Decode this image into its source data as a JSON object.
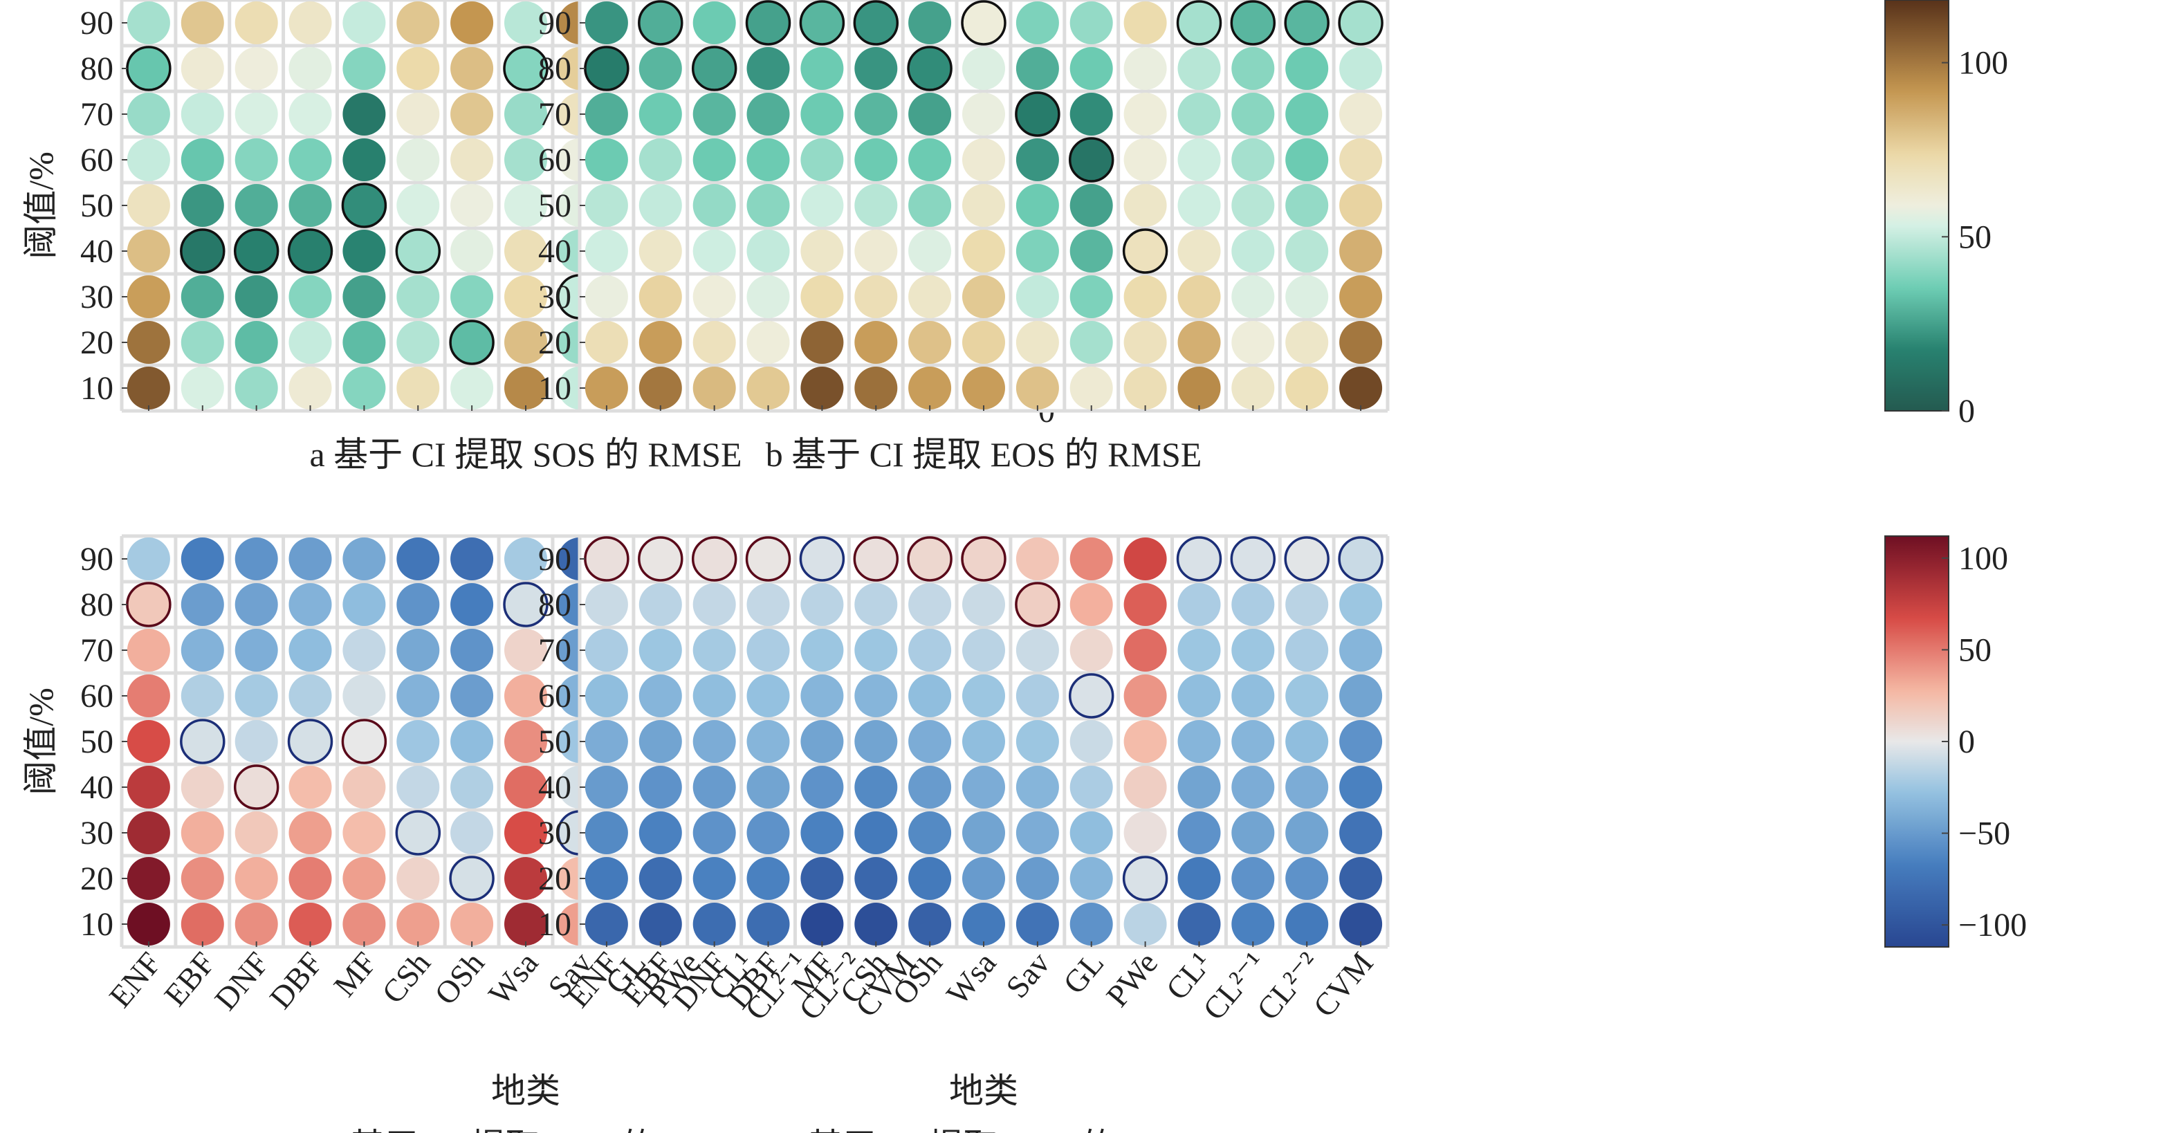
{
  "figure": {
    "ylabel": "阈值/%",
    "xlabel": "地类"
  },
  "chart_data": [
    {
      "type": "heatmap",
      "caption": "a 基于 CI 提取 SOS 的 RMSE",
      "categories": [
        "ENF",
        "EBF",
        "DNF",
        "DBF",
        "MF",
        "CSh",
        "OSh",
        "Wsa",
        "Sav",
        "GL",
        "PWe",
        "CL¹",
        "CL²⁻¹",
        "CL²⁻²",
        "CVM"
      ],
      "thresholds": [
        90,
        80,
        70,
        60,
        50,
        40,
        30,
        20,
        10
      ],
      "ylabel": "阈值/%",
      "xlabel": "",
      "colorbar": {
        "min": 0,
        "max": 105,
        "ticks": [
          0,
          50,
          100
        ],
        "scheme": "brbg"
      },
      "values": [
        [
          40,
          70,
          63,
          58,
          45,
          70,
          82,
          43,
          85,
          82,
          72,
          88,
          40,
          30,
          60
        ],
        [
          30,
          55,
          53,
          50,
          35,
          65,
          72,
          35,
          68,
          57,
          60,
          80,
          35,
          32,
          50
        ],
        [
          38,
          45,
          48,
          48,
          12,
          55,
          70,
          38,
          60,
          52,
          62,
          75,
          42,
          22,
          50
        ],
        [
          45,
          30,
          35,
          33,
          15,
          50,
          58,
          40,
          52,
          30,
          65,
          68,
          40,
          18,
          55
        ],
        [
          60,
          20,
          25,
          26,
          18,
          48,
          52,
          48,
          50,
          20,
          67,
          55,
          40,
          18,
          46
        ],
        [
          72,
          12,
          15,
          15,
          16,
          40,
          50,
          62,
          40,
          18,
          75,
          45,
          48,
          14,
          35
        ],
        [
          80,
          25,
          20,
          35,
          22,
          40,
          35,
          65,
          45,
          25,
          82,
          35,
          55,
          18,
          45
        ],
        [
          90,
          38,
          28,
          45,
          28,
          42,
          28,
          72,
          38,
          35,
          92,
          42,
          60,
          25,
          55
        ],
        [
          96,
          48,
          38,
          55,
          35,
          62,
          48,
          85,
          45,
          42,
          102,
          38,
          68,
          30,
          62
        ]
      ],
      "highlight": [
        [
          0,
          0,
          0,
          0,
          0,
          0,
          0,
          0,
          0,
          0,
          0,
          0,
          0,
          0,
          0
        ],
        [
          1,
          0,
          0,
          0,
          0,
          0,
          0,
          1,
          0,
          0,
          1,
          0,
          1,
          0,
          0
        ],
        [
          0,
          0,
          0,
          0,
          0,
          0,
          0,
          0,
          0,
          0,
          0,
          0,
          0,
          0,
          0
        ],
        [
          0,
          0,
          0,
          0,
          0,
          0,
          0,
          0,
          0,
          0,
          0,
          0,
          0,
          0,
          0
        ],
        [
          0,
          0,
          0,
          0,
          1,
          0,
          0,
          0,
          0,
          1,
          0,
          0,
          0,
          0,
          1
        ],
        [
          0,
          1,
          1,
          1,
          0,
          1,
          0,
          0,
          0,
          0,
          0,
          0,
          0,
          1,
          0
        ],
        [
          0,
          0,
          0,
          0,
          0,
          0,
          0,
          0,
          1,
          0,
          0,
          0,
          0,
          0,
          0
        ],
        [
          0,
          0,
          0,
          0,
          0,
          0,
          1,
          0,
          0,
          0,
          0,
          1,
          0,
          0,
          0
        ],
        [
          0,
          0,
          0,
          0,
          0,
          0,
          0,
          0,
          0,
          0,
          0,
          0,
          0,
          0,
          0
        ]
      ]
    },
    {
      "type": "heatmap",
      "caption": "b 基于 CI 提取 EOS 的 RMSE",
      "categories": [
        "ENF",
        "EBF",
        "DNF",
        "DBF",
        "MF",
        "CSh",
        "OSh",
        "Wsa",
        "Sav",
        "GL",
        "PWe",
        "CL¹",
        "CL²⁻¹",
        "CL²⁻²",
        "CVM"
      ],
      "thresholds": [
        90,
        80,
        70,
        60,
        50,
        40,
        30,
        20,
        10
      ],
      "ylabel": "",
      "xlabel": "",
      "colorbar": {
        "min": 0,
        "max": 118,
        "ticks": [
          0,
          50,
          100
        ],
        "scheme": "brbg"
      },
      "values": [
        [
          22,
          28,
          35,
          25,
          30,
          22,
          25,
          60,
          38,
          42,
          72,
          45,
          30,
          30,
          45
        ],
        [
          15,
          30,
          25,
          22,
          35,
          22,
          20,
          55,
          28,
          35,
          58,
          48,
          40,
          35,
          50
        ],
        [
          28,
          35,
          30,
          28,
          35,
          30,
          25,
          58,
          15,
          20,
          60,
          45,
          40,
          35,
          62
        ],
        [
          35,
          45,
          35,
          35,
          42,
          35,
          35,
          62,
          22,
          12,
          60,
          52,
          45,
          35,
          70
        ],
        [
          48,
          50,
          42,
          40,
          52,
          48,
          40,
          65,
          35,
          25,
          65,
          52,
          48,
          42,
          75
        ],
        [
          52,
          65,
          52,
          50,
          65,
          62,
          55,
          72,
          38,
          30,
          68,
          65,
          50,
          48,
          85
        ],
        [
          58,
          75,
          60,
          55,
          72,
          70,
          65,
          78,
          50,
          38,
          72,
          75,
          55,
          55,
          90
        ],
        [
          70,
          90,
          68,
          60,
          105,
          90,
          80,
          75,
          65,
          45,
          68,
          85,
          60,
          65,
          100
        ],
        [
          90,
          100,
          82,
          78,
          110,
          102,
          90,
          90,
          80,
          62,
          70,
          95,
          65,
          72,
          112
        ]
      ],
      "highlight": [
        [
          0,
          1,
          0,
          1,
          1,
          1,
          0,
          1,
          0,
          0,
          0,
          1,
          1,
          1,
          1
        ],
        [
          1,
          0,
          1,
          0,
          0,
          0,
          1,
          0,
          0,
          0,
          0,
          0,
          0,
          0,
          0
        ],
        [
          0,
          0,
          0,
          0,
          0,
          0,
          0,
          0,
          1,
          0,
          0,
          0,
          0,
          0,
          0
        ],
        [
          0,
          0,
          0,
          0,
          0,
          0,
          0,
          0,
          0,
          1,
          0,
          0,
          0,
          0,
          0
        ],
        [
          0,
          0,
          0,
          0,
          0,
          0,
          0,
          0,
          0,
          0,
          0,
          0,
          0,
          0,
          0
        ],
        [
          0,
          0,
          0,
          0,
          0,
          0,
          0,
          0,
          0,
          0,
          1,
          0,
          0,
          0,
          0
        ],
        [
          0,
          0,
          0,
          0,
          0,
          0,
          0,
          0,
          0,
          0,
          0,
          0,
          0,
          0,
          0
        ],
        [
          0,
          0,
          0,
          0,
          0,
          0,
          0,
          0,
          0,
          0,
          0,
          0,
          0,
          0,
          0
        ],
        [
          0,
          0,
          0,
          0,
          0,
          0,
          0,
          0,
          0,
          0,
          0,
          0,
          0,
          0,
          0
        ]
      ]
    },
    {
      "type": "heatmap",
      "caption": "c 基于 CI 提取 SOS 的 Bias",
      "categories": [
        "ENF",
        "EBF",
        "DNF",
        "DBF",
        "MF",
        "CSh",
        "OSh",
        "Wsa",
        "Sav",
        "GL",
        "PWe",
        "CL¹",
        "CL²⁻¹",
        "CL²⁻²",
        "CVM"
      ],
      "thresholds": [
        90,
        80,
        70,
        60,
        50,
        40,
        30,
        20,
        10
      ],
      "ylabel": "阈值/%",
      "xlabel": "地类",
      "colorbar": {
        "min": -92,
        "max": 92,
        "ticks": [
          -50,
          0,
          50
        ],
        "scheme": "rdbu"
      },
      "values": [
        [
          -18,
          -55,
          -45,
          -40,
          -35,
          -60,
          -65,
          -18,
          -70,
          -60,
          -25,
          -65,
          25,
          -15,
          -35
        ],
        [
          15,
          -40,
          -38,
          -30,
          -25,
          -45,
          -55,
          -5,
          -50,
          -40,
          -5,
          -55,
          35,
          -15,
          -25
        ],
        [
          25,
          -30,
          -32,
          -25,
          -10,
          -35,
          -45,
          10,
          -40,
          -30,
          15,
          -50,
          45,
          -10,
          -20
        ],
        [
          40,
          -15,
          -18,
          -15,
          -5,
          -30,
          -40,
          25,
          -30,
          -10,
          30,
          -40,
          45,
          -5,
          -15
        ],
        [
          55,
          -5,
          -10,
          -5,
          0,
          -20,
          -25,
          35,
          -20,
          0,
          40,
          -25,
          50,
          0,
          5
        ],
        [
          65,
          10,
          5,
          20,
          15,
          -10,
          -15,
          45,
          -5,
          10,
          50,
          -10,
          55,
          10,
          15
        ],
        [
          75,
          25,
          15,
          30,
          20,
          -5,
          -10,
          55,
          -5,
          20,
          60,
          -5,
          60,
          15,
          25
        ],
        [
          85,
          35,
          25,
          40,
          30,
          10,
          -5,
          65,
          20,
          30,
          75,
          -5,
          60,
          20,
          45
        ],
        [
          92,
          45,
          35,
          50,
          35,
          30,
          25,
          75,
          30,
          45,
          92,
          10,
          65,
          25,
          50
        ]
      ],
      "highlight": [
        [
          0,
          0,
          0,
          0,
          0,
          0,
          0,
          0,
          0,
          0,
          0,
          0,
          1,
          0,
          0
        ],
        [
          1,
          0,
          0,
          0,
          0,
          0,
          0,
          1,
          0,
          0,
          1,
          0,
          0,
          0,
          0
        ],
        [
          0,
          0,
          0,
          0,
          0,
          0,
          0,
          0,
          0,
          0,
          0,
          0,
          0,
          0,
          0
        ],
        [
          0,
          0,
          0,
          0,
          0,
          0,
          0,
          0,
          0,
          0,
          0,
          0,
          0,
          0,
          1
        ],
        [
          0,
          1,
          0,
          1,
          1,
          0,
          0,
          0,
          0,
          1,
          0,
          0,
          0,
          1,
          0
        ],
        [
          0,
          0,
          1,
          0,
          0,
          0,
          0,
          0,
          0,
          0,
          0,
          0,
          0,
          0,
          0
        ],
        [
          0,
          0,
          0,
          0,
          0,
          1,
          0,
          0,
          1,
          0,
          0,
          0,
          0,
          0,
          0
        ],
        [
          0,
          0,
          0,
          0,
          0,
          0,
          1,
          0,
          0,
          0,
          0,
          0,
          0,
          0,
          0
        ],
        [
          0,
          0,
          0,
          0,
          0,
          0,
          0,
          0,
          0,
          0,
          0,
          1,
          0,
          0,
          0
        ]
      ]
    },
    {
      "type": "heatmap",
      "caption": "d 基于 CI 提取 EOS 的 Bias",
      "categories": [
        "ENF",
        "EBF",
        "DNF",
        "DBF",
        "MF",
        "CSh",
        "OSh",
        "Wsa",
        "Sav",
        "GL",
        "PWe",
        "CL¹",
        "CL²⁻¹",
        "CL²⁻²",
        "CVM"
      ],
      "thresholds": [
        90,
        80,
        70,
        60,
        50,
        40,
        30,
        20,
        10
      ],
      "ylabel": "",
      "xlabel": "地类",
      "colorbar": {
        "min": -112,
        "max": 112,
        "ticks": [
          -100,
          -50,
          0,
          50,
          100
        ],
        "scheme": "rdbu"
      },
      "values": [
        [
          5,
          2,
          5,
          2,
          -5,
          5,
          10,
          12,
          20,
          45,
          70,
          -5,
          -5,
          -2,
          -10
        ],
        [
          -10,
          -15,
          -12,
          -12,
          -15,
          -15,
          -12,
          -10,
          15,
          30,
          60,
          -20,
          -20,
          -15,
          -25
        ],
        [
          -20,
          -25,
          -22,
          -20,
          -25,
          -25,
          -20,
          -15,
          -10,
          10,
          55,
          -25,
          -25,
          -20,
          -35
        ],
        [
          -30,
          -35,
          -30,
          -28,
          -35,
          -35,
          -30,
          -25,
          -20,
          -5,
          40,
          -30,
          -30,
          -25,
          -45
        ],
        [
          -40,
          -45,
          -40,
          -35,
          -45,
          -45,
          -40,
          -30,
          -25,
          -10,
          25,
          -35,
          -35,
          -30,
          -55
        ],
        [
          -50,
          -55,
          -50,
          -45,
          -55,
          -60,
          -50,
          -40,
          -35,
          -20,
          15,
          -45,
          -40,
          -40,
          -65
        ],
        [
          -60,
          -65,
          -55,
          -55,
          -65,
          -70,
          -60,
          -45,
          -40,
          -30,
          5,
          -55,
          -45,
          -45,
          -75
        ],
        [
          -70,
          -80,
          -65,
          -65,
          -90,
          -85,
          -70,
          -50,
          -50,
          -35,
          -5,
          -70,
          -55,
          -55,
          -90
        ],
        [
          -85,
          -95,
          -80,
          -80,
          -110,
          -105,
          -90,
          -70,
          -75,
          -55,
          -15,
          -85,
          -65,
          -70,
          -105
        ]
      ],
      "highlight": [
        [
          1,
          1,
          1,
          1,
          1,
          1,
          1,
          1,
          0,
          0,
          0,
          1,
          1,
          1,
          1
        ],
        [
          0,
          0,
          0,
          0,
          0,
          0,
          0,
          0,
          1,
          0,
          0,
          0,
          0,
          0,
          0
        ],
        [
          0,
          0,
          0,
          0,
          0,
          0,
          0,
          0,
          0,
          0,
          0,
          0,
          0,
          0,
          0
        ],
        [
          0,
          0,
          0,
          0,
          0,
          0,
          0,
          0,
          0,
          1,
          0,
          0,
          0,
          0,
          0
        ],
        [
          0,
          0,
          0,
          0,
          0,
          0,
          0,
          0,
          0,
          0,
          0,
          0,
          0,
          0,
          0
        ],
        [
          0,
          0,
          0,
          0,
          0,
          0,
          0,
          0,
          0,
          0,
          0,
          0,
          0,
          0,
          0
        ],
        [
          0,
          0,
          0,
          0,
          0,
          0,
          0,
          0,
          0,
          0,
          0,
          0,
          0,
          0,
          0
        ],
        [
          0,
          0,
          0,
          0,
          0,
          0,
          0,
          0,
          0,
          0,
          1,
          0,
          0,
          0,
          0
        ],
        [
          0,
          0,
          0,
          0,
          0,
          0,
          0,
          0,
          0,
          0,
          0,
          0,
          0,
          0,
          0
        ]
      ]
    }
  ]
}
